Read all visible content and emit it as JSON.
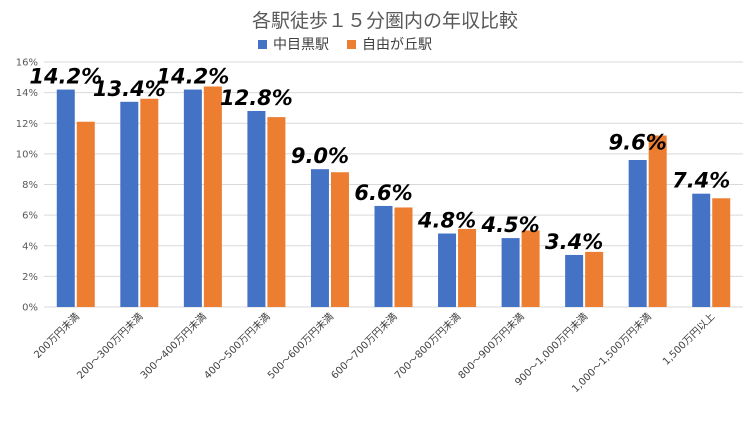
{
  "chart_data": {
    "type": "bar",
    "title": "各駅徒歩１５分圏内の年収比較",
    "categories": [
      "200万円未満",
      "200～300万円未満",
      "300～400万円未満",
      "400～500万円未満",
      "500～600万円未満",
      "600～700万円未満",
      "700～800万円未満",
      "800～900万円未満",
      "900～1,000万円未満",
      "1,000～1,500万円未満",
      "1,500万円以上"
    ],
    "series": [
      {
        "name": "中目黒駅",
        "color": "#4472c4",
        "values": [
          14.2,
          13.4,
          14.2,
          12.8,
          9.0,
          6.6,
          4.8,
          4.5,
          3.4,
          9.6,
          7.4
        ],
        "data_labels": [
          "14.2%",
          "13.4%",
          "14.2%",
          "12.8%",
          "9.0%",
          "6.6%",
          "4.8%",
          "4.5%",
          "3.4%",
          "9.6%",
          "7.4%"
        ]
      },
      {
        "name": "自由が丘駅",
        "color": "#ed7d31",
        "values": [
          12.1,
          13.6,
          14.4,
          12.4,
          8.8,
          6.5,
          5.1,
          5.0,
          3.6,
          11.2,
          7.1
        ]
      }
    ],
    "yticks": [
      "0%",
      "2%",
      "4%",
      "6%",
      "8%",
      "10%",
      "12%",
      "14%",
      "16%"
    ],
    "ylim": [
      0,
      16
    ],
    "xlabel": "",
    "ylabel": "",
    "legend": "top-center",
    "grid": true
  }
}
